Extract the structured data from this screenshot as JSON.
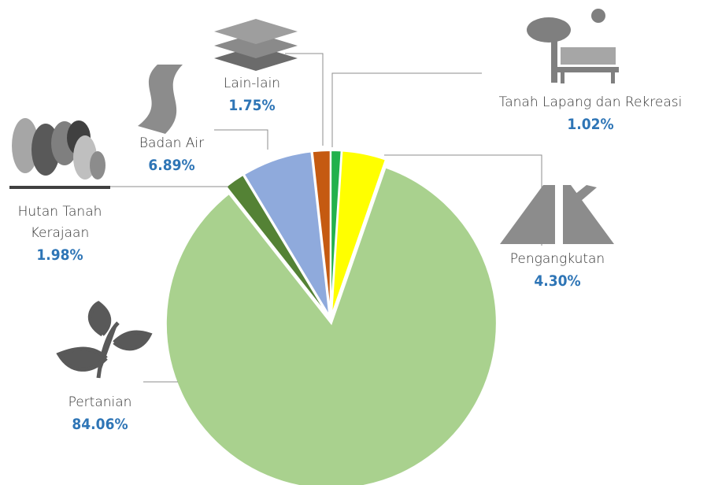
{
  "chart_data": {
    "type": "pie",
    "categories": [
      "Tanah Lapang dan Rekreasi",
      "Pengangkutan",
      "Pertanian",
      "Hutan Tanah Kerajaan",
      "Badan Air",
      "Lain-lain"
    ],
    "values": [
      1.02,
      4.3,
      84.06,
      1.98,
      6.89,
      1.75
    ],
    "value_labels": [
      "1.02%",
      "4.30%",
      "84.06%",
      "1.98%",
      "6.89%",
      "1.75%"
    ],
    "colors": [
      "#22b14c",
      "#ffff00",
      "#a9d18e",
      "#548235",
      "#8faadc",
      "#c55a11"
    ]
  }
}
